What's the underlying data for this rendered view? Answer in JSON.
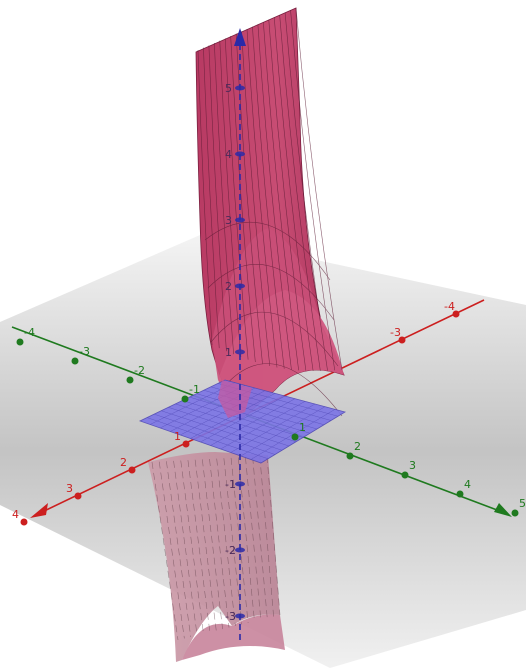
{
  "scene": {
    "axes": {
      "x": {
        "color": "#cc1f1f",
        "ticks": [
          {
            "value": 4,
            "label": "4"
          },
          {
            "value": 3,
            "label": "3"
          },
          {
            "value": 2,
            "label": "2"
          },
          {
            "value": 1,
            "label": "1"
          },
          {
            "value": -3,
            "label": "-3"
          },
          {
            "value": -4,
            "label": "-4"
          }
        ]
      },
      "y": {
        "color": "#1f7a1f",
        "ticks": [
          {
            "value": -4,
            "label": "-4"
          },
          {
            "value": -3,
            "label": "-3"
          },
          {
            "value": -2,
            "label": "-2"
          },
          {
            "value": -1,
            "label": "-1"
          },
          {
            "value": 1,
            "label": "1"
          },
          {
            "value": 2,
            "label": "2"
          },
          {
            "value": 3,
            "label": "3"
          },
          {
            "value": 4,
            "label": "4"
          },
          {
            "value": 5,
            "label": "5"
          }
        ]
      },
      "z": {
        "color": "#2a2aa8",
        "ticks": [
          {
            "value": 5,
            "label": "5"
          },
          {
            "value": 4,
            "label": "4"
          },
          {
            "value": 3,
            "label": "3"
          },
          {
            "value": 2,
            "label": "2"
          },
          {
            "value": 1,
            "label": "1"
          },
          {
            "value": -1,
            "label": "-1"
          },
          {
            "value": -2,
            "label": "-2"
          },
          {
            "value": -3,
            "label": "-3"
          }
        ]
      }
    },
    "colors": {
      "surface": "#c0406a",
      "surface_light": "#cf7c95",
      "surface_below": "#d8a7b5",
      "plane": "#7b74e6",
      "floor": "#c8c8c8"
    }
  }
}
